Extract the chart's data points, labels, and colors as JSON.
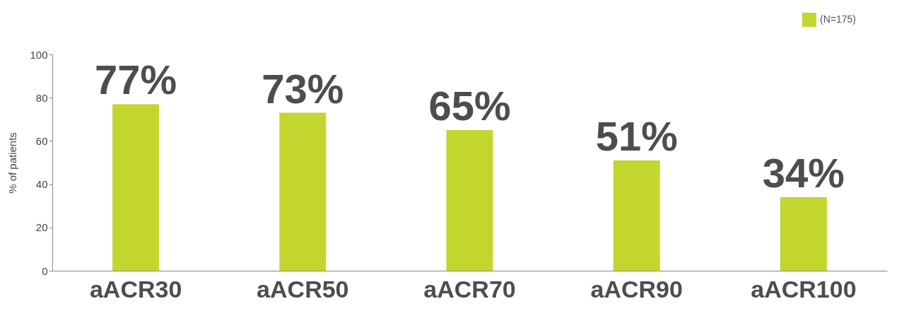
{
  "chart_data": {
    "type": "bar",
    "categories": [
      "aACR30",
      "aACR50",
      "aACR70",
      "aACR90",
      "aACR100"
    ],
    "series": [
      {
        "name": "(N=175)",
        "color": "#c3d62e",
        "values": [
          77,
          73,
          65,
          51,
          34
        ],
        "value_labels": [
          "77%",
          "73%",
          "65%",
          "51%",
          "34%"
        ]
      }
    ],
    "ylabel": "% of patients",
    "ylim": [
      0,
      100
    ],
    "yticks": [
      0,
      20,
      40,
      60,
      80,
      100
    ],
    "grid": false,
    "legend": "top right"
  }
}
